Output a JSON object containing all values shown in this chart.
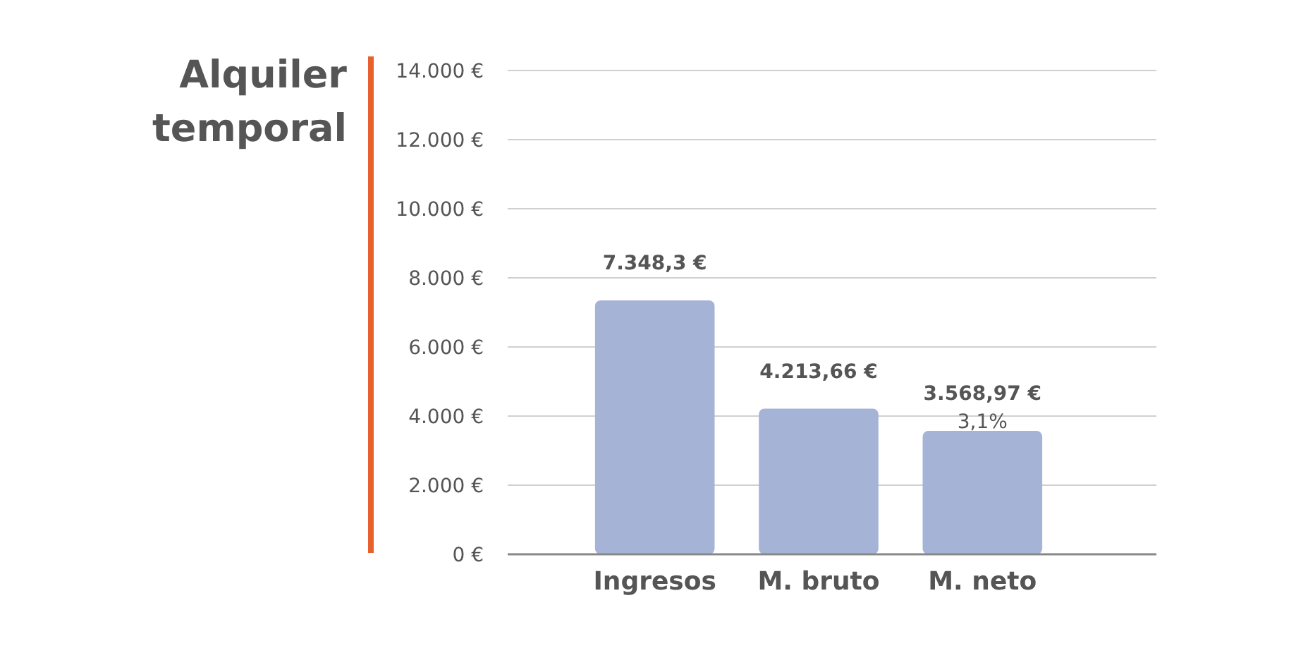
{
  "chart_data": {
    "type": "bar",
    "title": "Alquiler temporal",
    "categories": [
      "Ingresos",
      "M. bruto",
      "M. neto"
    ],
    "values": [
      7348.3,
      4213.66,
      3568.97
    ],
    "color": "#a4b3d6",
    "value_labels": [
      "7.348,3 €",
      "4.213,66 €",
      "3.568,97 €"
    ],
    "annotations": [
      {
        "text": "3,1%",
        "x": "M. neto",
        "y": 3568.97
      }
    ],
    "ylim": [
      0,
      14000
    ],
    "yticks": [
      {
        "value": 0,
        "label": "0 €"
      },
      {
        "value": 2000,
        "label": "2.000 €"
      },
      {
        "value": 4000,
        "label": "4.000 €"
      },
      {
        "value": 6000,
        "label": "6.000 €"
      },
      {
        "value": 8000,
        "label": "8.000 €"
      },
      {
        "value": 10000,
        "label": "10.000 €"
      },
      {
        "value": 12000,
        "label": "12.000 €"
      },
      {
        "value": 14000,
        "label": "14.000 €"
      }
    ],
    "grid": "y"
  }
}
